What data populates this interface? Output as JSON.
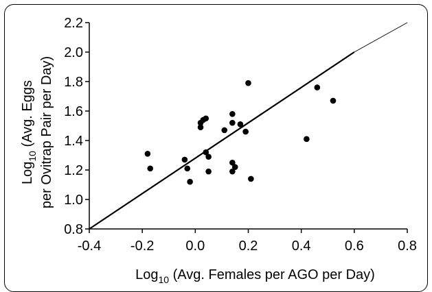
{
  "chart_data": {
    "type": "scatter",
    "xlabel": {
      "prefix": "Log",
      "sub": "10",
      "rest": " (Avg. Females per AGO per Day)"
    },
    "ylabel": {
      "prefix": "Log",
      "sub": "10",
      "line1_rest": " (Avg. Eggs",
      "line2": "per Ovitrap Pair per Day)"
    },
    "xlim": [
      -0.4,
      0.8
    ],
    "ylim": [
      0.8,
      2.2
    ],
    "x_ticks": [
      "-0.4",
      "-0.2",
      "0.0",
      "0.2",
      "0.4",
      "0.6",
      "0.8"
    ],
    "y_ticks": [
      "0.8",
      "1.0",
      "1.2",
      "1.4",
      "1.6",
      "1.8",
      "2.0",
      "2.2"
    ],
    "grid": false,
    "points": [
      {
        "x": -0.18,
        "y": 1.31
      },
      {
        "x": -0.17,
        "y": 1.21
      },
      {
        "x": -0.04,
        "y": 1.27
      },
      {
        "x": -0.03,
        "y": 1.21
      },
      {
        "x": -0.02,
        "y": 1.12
      },
      {
        "x": 0.02,
        "y": 1.49
      },
      {
        "x": 0.02,
        "y": 1.52
      },
      {
        "x": 0.03,
        "y": 1.54
      },
      {
        "x": 0.04,
        "y": 1.55
      },
      {
        "x": 0.04,
        "y": 1.32
      },
      {
        "x": 0.05,
        "y": 1.29
      },
      {
        "x": 0.05,
        "y": 1.19
      },
      {
        "x": 0.11,
        "y": 1.47
      },
      {
        "x": 0.14,
        "y": 1.58
      },
      {
        "x": 0.14,
        "y": 1.52
      },
      {
        "x": 0.14,
        "y": 1.25
      },
      {
        "x": 0.14,
        "y": 1.19
      },
      {
        "x": 0.15,
        "y": 1.22
      },
      {
        "x": 0.17,
        "y": 1.51
      },
      {
        "x": 0.19,
        "y": 1.46
      },
      {
        "x": 0.2,
        "y": 1.79
      },
      {
        "x": 0.21,
        "y": 1.14
      },
      {
        "x": 0.42,
        "y": 1.41
      },
      {
        "x": 0.46,
        "y": 1.76
      },
      {
        "x": 0.52,
        "y": 1.67
      }
    ],
    "reference_line": [
      {
        "x": -0.4,
        "y": 0.8
      },
      {
        "x": 0.6,
        "y": 2.0
      }
    ],
    "extended_line": [
      {
        "x": 0.6,
        "y": 2.0
      },
      {
        "x": 0.8,
        "y": 2.2
      }
    ]
  }
}
